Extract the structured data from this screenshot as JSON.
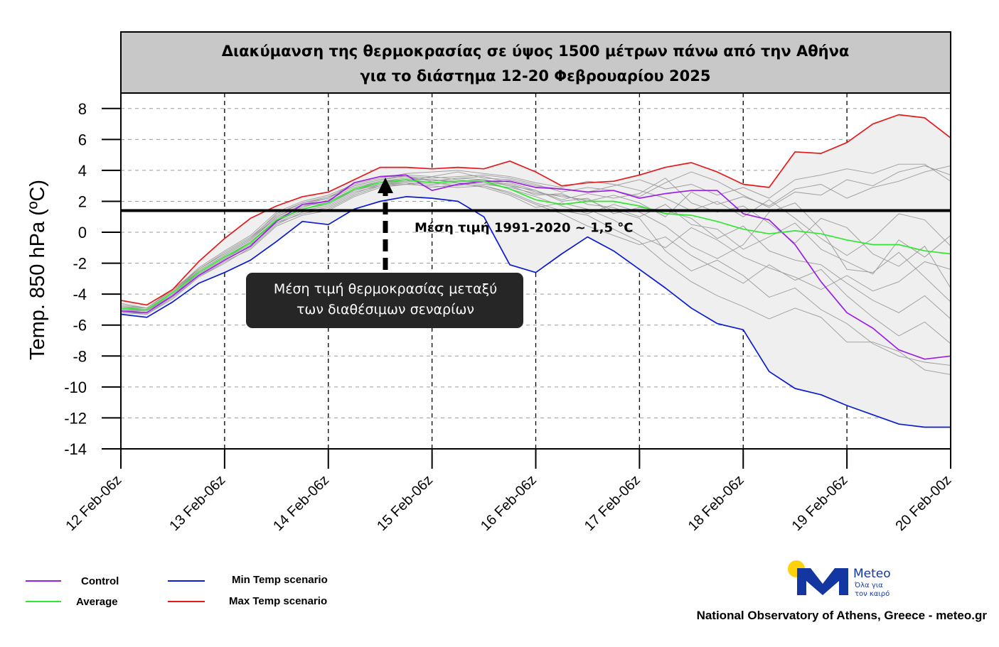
{
  "chart_data": {
    "type": "line",
    "title": [
      "Διακύμανση της θερμοκρασίας σε ύψος 1500 μέτρων πάνω από την Αθήνα",
      "για το διάστημα  12-20 Φεβρουαρίου  2025"
    ],
    "ylabel": "Temp. 850 hPa (ºC)",
    "ylim": [
      -14,
      9
    ],
    "yticks": [
      8,
      6,
      4,
      2,
      0,
      -2,
      -4,
      -6,
      -8,
      -10,
      -12,
      -14
    ],
    "xlim": [
      0,
      8
    ],
    "xticks": [
      {
        "x": 0,
        "label": "12 Feb-06z"
      },
      {
        "x": 1,
        "label": "13 Feb-06z"
      },
      {
        "x": 2,
        "label": "14 Feb-06z"
      },
      {
        "x": 3,
        "label": "15 Feb-06z"
      },
      {
        "x": 4,
        "label": "16 Feb-06z"
      },
      {
        "x": 5,
        "label": "17 Feb-06z"
      },
      {
        "x": 6,
        "label": "18 Feb-06z"
      },
      {
        "x": 7,
        "label": "19 Feb-06z"
      },
      {
        "x": 8,
        "label": "20 Feb-00z"
      }
    ],
    "grid": true,
    "x": [
      0,
      0.25,
      0.5,
      0.75,
      1,
      1.25,
      1.5,
      1.75,
      2,
      2.25,
      2.5,
      2.75,
      3,
      3.25,
      3.5,
      3.75,
      4,
      4.25,
      4.5,
      4.75,
      5,
      5.25,
      5.5,
      5.75,
      6,
      6.25,
      6.5,
      6.75,
      7,
      7.25,
      7.5,
      7.75,
      8
    ],
    "series": [
      {
        "name": "Max Temp scenario",
        "color": "#e31a1c",
        "values": [
          -4.4,
          -4.7,
          -3.7,
          -1.9,
          -0.4,
          0.9,
          1.7,
          2.3,
          2.6,
          3.4,
          4.2,
          4.2,
          4.1,
          4.2,
          4.1,
          4.6,
          3.9,
          3.0,
          3.2,
          3.3,
          3.7,
          4.2,
          4.5,
          3.9,
          3.1,
          2.9,
          5.2,
          5.1,
          5.8,
          7.0,
          7.6,
          7.4,
          6.1
        ]
      },
      {
        "name": "Min Temp scenario",
        "color": "#0a1bd1",
        "values": [
          -5.3,
          -5.5,
          -4.5,
          -3.3,
          -2.6,
          -1.8,
          -0.6,
          0.7,
          0.5,
          1.5,
          2.0,
          2.3,
          2.2,
          2.0,
          1.0,
          -2.1,
          -2.6,
          -1.4,
          -0.3,
          -1.2,
          -2.4,
          -3.6,
          -4.9,
          -5.9,
          -6.3,
          -9.0,
          -10.1,
          -10.5,
          -11.2,
          -11.8,
          -12.4,
          -12.6,
          -12.6
        ]
      },
      {
        "name": "Control",
        "color": "#9b1ee6",
        "values": [
          -5.1,
          -5.2,
          -4.1,
          -2.8,
          -1.8,
          -0.9,
          0.7,
          1.8,
          2.0,
          3.2,
          3.6,
          3.7,
          2.7,
          3.1,
          3.3,
          3.3,
          2.9,
          2.8,
          2.6,
          2.7,
          2.2,
          2.5,
          2.7,
          2.7,
          1.2,
          0.8,
          -0.8,
          -3.2,
          -5.2,
          -6.2,
          -7.6,
          -8.2,
          -8.0
        ]
      },
      {
        "name": "Average",
        "color": "#2fe82f",
        "values": [
          -4.9,
          -5.0,
          -3.9,
          -2.6,
          -1.6,
          -0.7,
          0.8,
          1.5,
          1.9,
          2.8,
          3.2,
          3.4,
          3.2,
          3.3,
          3.3,
          2.8,
          2.1,
          1.8,
          2.0,
          2.0,
          1.7,
          1.2,
          1.1,
          0.7,
          0.2,
          -0.1,
          0.1,
          -0.1,
          -0.5,
          -0.8,
          -0.8,
          -1.2,
          -1.4
        ]
      }
    ],
    "ensemble_members": [
      [
        -4.8,
        -5.0,
        -3.9,
        -2.4,
        -1.3,
        -0.3,
        1.1,
        1.9,
        2.3,
        3.0,
        3.4,
        3.6,
        3.5,
        3.6,
        3.7,
        3.5,
        3.1,
        2.6,
        2.9,
        2.7,
        2.3,
        3.2,
        3.9,
        3.3,
        2.4,
        1.6,
        2.6,
        2.4,
        3.4,
        3.0,
        3.9,
        4.3,
        3.7
      ],
      [
        -5.0,
        -5.2,
        -4.0,
        -2.7,
        -1.7,
        -0.8,
        0.6,
        1.4,
        1.7,
        2.6,
        3.0,
        3.1,
        3.3,
        3.5,
        3.4,
        3.1,
        2.6,
        2.3,
        2.1,
        1.4,
        0.9,
        -1.2,
        -2.5,
        -1.8,
        -2.8,
        -4.2,
        -3.6,
        -5.0,
        -5.9,
        -7.2,
        -8.0,
        -8.4,
        -8.6
      ],
      [
        -4.6,
        -4.9,
        -3.8,
        -2.3,
        -1.2,
        -0.2,
        1.3,
        2.0,
        2.4,
        3.1,
        3.5,
        3.8,
        3.9,
        4.0,
        3.8,
        3.6,
        3.2,
        2.9,
        3.3,
        3.1,
        2.7,
        2.2,
        1.4,
        2.0,
        1.0,
        2.1,
        0.9,
        -0.4,
        -1.5,
        -0.4,
        1.2,
        0.8,
        -0.9
      ],
      [
        -5.1,
        -5.3,
        -4.2,
        -2.9,
        -1.9,
        -1.1,
        0.4,
        1.1,
        1.4,
        2.3,
        2.9,
        3.1,
        3.0,
        2.9,
        3.0,
        2.6,
        1.9,
        1.4,
        1.1,
        0.2,
        -0.6,
        -2.0,
        -3.2,
        -4.1,
        -4.8,
        -5.6,
        -4.9,
        -5.5,
        -7.1,
        -7.1,
        -7.7,
        -8.9,
        -9.2
      ],
      [
        -4.9,
        -5.1,
        -3.9,
        -2.5,
        -1.5,
        -0.5,
        0.9,
        1.6,
        2.1,
        2.9,
        3.3,
        3.5,
        3.4,
        3.2,
        3.1,
        2.9,
        2.5,
        2.4,
        2.0,
        2.4,
        1.9,
        1.0,
        2.6,
        1.8,
        2.3,
        1.7,
        2.8,
        3.1,
        2.2,
        2.9,
        3.3,
        3.9,
        4.3
      ],
      [
        -5.2,
        -5.3,
        -4.3,
        -2.9,
        -2.0,
        -1.0,
        0.5,
        1.3,
        1.6,
        2.5,
        3.1,
        3.2,
        3.1,
        3.2,
        2.9,
        2.4,
        1.6,
        1.9,
        1.5,
        0.8,
        -0.2,
        -1.0,
        0.3,
        -0.5,
        -1.6,
        -2.3,
        -2.9,
        -3.7,
        -2.8,
        -3.8,
        -3.2,
        -1.9,
        -2.4
      ],
      [
        -4.8,
        -4.9,
        -3.7,
        -2.4,
        -1.4,
        -0.4,
        1.2,
        1.9,
        2.2,
        3.2,
        3.6,
        3.6,
        3.3,
        3.5,
        3.6,
        3.2,
        2.7,
        2.1,
        2.5,
        2.2,
        2.5,
        3.5,
        1.9,
        1.3,
        1.7,
        0.6,
        -0.7,
        0.9,
        0.3,
        -1.4,
        -2.2,
        -0.9,
        -3.6
      ],
      [
        -5.0,
        -5.1,
        -4.1,
        -2.6,
        -1.6,
        -0.6,
        0.8,
        1.7,
        1.9,
        2.7,
        3.2,
        3.3,
        3.6,
        3.4,
        3.2,
        2.8,
        2.3,
        1.7,
        1.2,
        1.8,
        1.3,
        0.4,
        -0.9,
        -1.7,
        -0.8,
        1.3,
        1.9,
        0.2,
        -2.4,
        -2.6,
        -1.3,
        -2.9,
        -4.5
      ],
      [
        -4.7,
        -4.9,
        -3.8,
        -2.4,
        -1.4,
        -0.4,
        1.0,
        1.8,
        2.2,
        3.0,
        3.4,
        3.7,
        3.6,
        3.9,
        3.5,
        3.4,
        3.0,
        2.8,
        2.6,
        3.0,
        3.4,
        2.8,
        3.1,
        2.4,
        2.9,
        2.2,
        3.4,
        3.7,
        4.1,
        3.8,
        4.4,
        4.4,
        3.3
      ],
      [
        -5.1,
        -5.2,
        -4.1,
        -2.8,
        -1.8,
        -0.9,
        0.6,
        1.2,
        1.5,
        2.4,
        3.0,
        3.2,
        2.9,
        3.1,
        3.0,
        2.5,
        1.8,
        1.2,
        0.4,
        -0.2,
        -0.8,
        -0.3,
        -1.5,
        -2.4,
        -3.3,
        -2.1,
        -3.1,
        -2.4,
        -4.1,
        -5.5,
        -6.7,
        -5.8,
        -7.2
      ],
      [
        -4.9,
        -5.0,
        -3.9,
        -2.5,
        -1.5,
        -0.5,
        1.0,
        1.7,
        2.0,
        2.8,
        3.3,
        3.4,
        3.4,
        3.3,
        3.4,
        3.0,
        2.4,
        2.5,
        1.8,
        1.6,
        1.0,
        1.8,
        0.5,
        0.2,
        -1.1,
        -0.3,
        0.6,
        -1.1,
        -1.9,
        -2.7,
        -0.5,
        -1.6,
        -0.2
      ],
      [
        -5.0,
        -5.1,
        -4.0,
        -2.7,
        -1.7,
        -0.7,
        0.7,
        1.5,
        1.8,
        2.7,
        3.1,
        3.3,
        3.2,
        3.0,
        3.3,
        3.0,
        2.7,
        2.0,
        2.2,
        1.2,
        1.6,
        1.4,
        0.9,
        -0.4,
        0.4,
        -1.2,
        -1.8,
        -2.1,
        -3.3,
        -4.4,
        -5.2,
        -4.1,
        -5.6
      ]
    ],
    "reference_line": {
      "value": 1.4,
      "label": "Μέση τιμή 1991-2020  ~ 1,5 °C"
    },
    "callout": {
      "lines": [
        "Μέση τιμή θερμοκρασίας μεταξύ",
        "των διαθέσιμων σεναρίων"
      ],
      "points_to_x": 2.6,
      "points_to_y": 3.6
    },
    "legend": [
      {
        "label": "Control",
        "color": "#9b1ee6"
      },
      {
        "label": "Average",
        "color": "#2fe82f"
      },
      {
        "label": "Min Temp scenario",
        "color": "#0a1bd1"
      },
      {
        "label": "Max Temp scenario",
        "color": "#e31a1c"
      }
    ],
    "legend_position": "bottom-left"
  },
  "footer": {
    "credit": "National Observatory of Athens, Greece - meteo.gr",
    "logo_word": "Meteo",
    "logo_tagline": [
      "Όλα για",
      "τον καιρό"
    ]
  },
  "colors": {
    "title_background": "#c8c8c8",
    "envelope_fill": "#efefef",
    "member_line": "#9a9a9a",
    "callout_background": "#262626",
    "logo_blue": "#1436a0",
    "logo_sun": "#ffd20a"
  }
}
